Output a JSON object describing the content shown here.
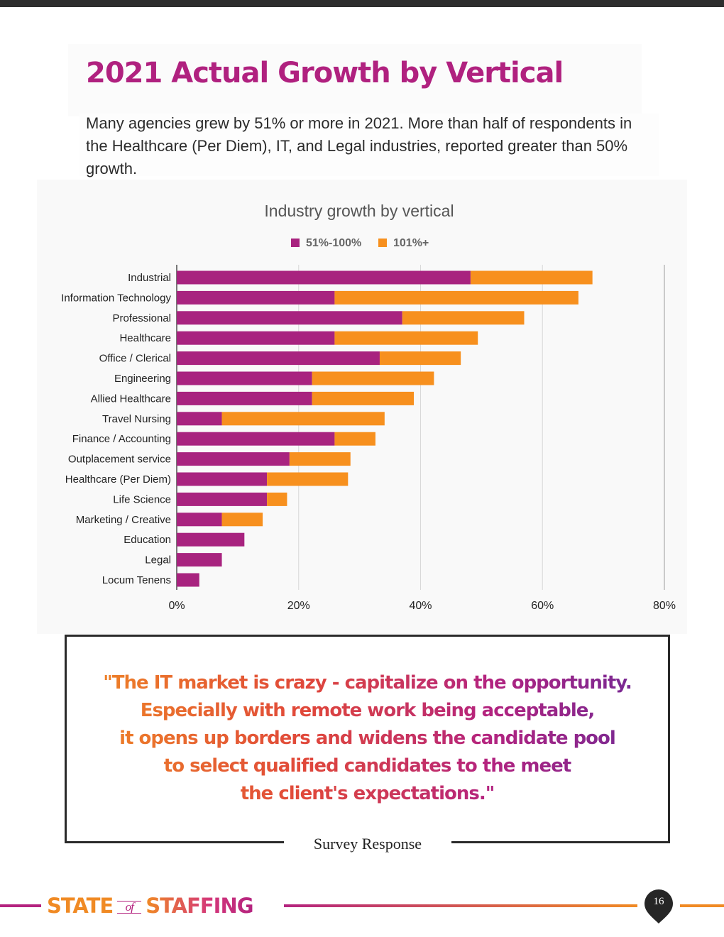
{
  "title": "2021 Actual Growth by Vertical",
  "intro": "Many agencies grew by 51% or more in 2021. More than half of respondents in the Healthcare (Per Diem), IT, and Legal industries, reported greater than 50% growth.",
  "chart_data": {
    "type": "bar",
    "orientation": "horizontal",
    "stacked": true,
    "title": "Industry growth by vertical",
    "categories": [
      "Industrial",
      "Information Technology",
      "Professional",
      "Healthcare",
      "Office / Clerical",
      "Engineering",
      "Allied Healthcare",
      "Travel Nursing",
      "Finance / Accounting",
      "Outplacement service",
      "Healthcare (Per Diem)",
      "Life Science",
      "Marketing / Creative",
      "Education",
      "Legal",
      "Locum Tenens"
    ],
    "series": [
      {
        "name": "51%-100%",
        "color": "#a8237f",
        "values": [
          48.2,
          25.9,
          37.0,
          25.9,
          33.3,
          22.2,
          22.2,
          7.4,
          25.9,
          18.5,
          14.8,
          14.8,
          7.4,
          11.1,
          7.4,
          3.7
        ]
      },
      {
        "name": "101%+",
        "color": "#f7901e",
        "values": [
          20.0,
          40.0,
          20.0,
          23.5,
          13.3,
          20.0,
          16.7,
          26.7,
          6.7,
          10.0,
          13.3,
          3.3,
          6.7,
          0,
          0,
          0
        ]
      }
    ],
    "x_ticks": [
      "0%",
      "20%",
      "40%",
      "60%",
      "80%"
    ],
    "xlim": [
      0,
      80
    ],
    "grid": true,
    "legend": "top-center"
  },
  "quote": {
    "lines": [
      "\"The IT market is crazy - capitalize on the opportunity.",
      "Especially with remote work being acceptable,",
      "it opens up borders and widens the candidate pool",
      "to select qualified candidates to the meet",
      "the client's expectations.\""
    ],
    "caption": "Survey Response"
  },
  "footer": {
    "brand_word1": "STATE",
    "brand_word2": "of",
    "brand_word3": "STAFFING",
    "page_number": "16"
  }
}
